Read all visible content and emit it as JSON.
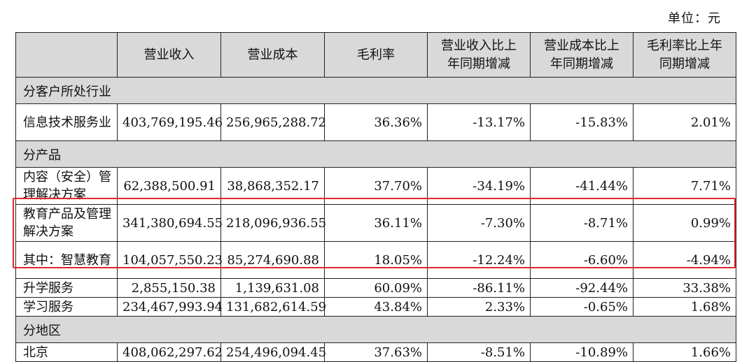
{
  "unit_label": "单位：元",
  "headers": [
    "",
    "营业收入",
    "营业成本",
    "毛利率",
    "营业收入比上年同期增减",
    "营业成本比上年同期增减",
    "毛利率比上年同期增减"
  ],
  "sections": [
    {
      "title": "分客户所处行业",
      "rows": [
        {
          "name": "信息技术服务业",
          "values": [
            "403,769,195.46",
            "256,965,288.72",
            "36.36%",
            "-13.17%",
            "-15.83%",
            "2.01%"
          ]
        }
      ]
    },
    {
      "title": "分产品",
      "rows": [
        {
          "name": "内容（安全）管理解决方案",
          "values": [
            "62,388,500.91",
            "38,868,352.17",
            "37.70%",
            "-34.19%",
            "-41.44%",
            "7.71%"
          ]
        },
        {
          "name": "教育产品及管理解决方案",
          "values": [
            "341,380,694.55",
            "218,096,936.55",
            "36.11%",
            "-7.30%",
            "-8.71%",
            "0.99%"
          ]
        },
        {
          "name": "其中：智慧教育",
          "values": [
            "104,057,550.23",
            "85,274,690.88",
            "18.05%",
            "-12.24%",
            "-6.60%",
            "-4.94%"
          ]
        },
        {
          "name": "升学服务",
          "values": [
            "2,855,150.38",
            "1,139,631.08",
            "60.09%",
            "-86.11%",
            "-92.44%",
            "33.38%"
          ]
        },
        {
          "name": "学习服务",
          "values": [
            "234,467,993.94",
            "131,682,614.59",
            "43.84%",
            "2.33%",
            "-0.65%",
            "1.68%"
          ]
        }
      ]
    },
    {
      "title": "分地区",
      "rows": [
        {
          "name": "北京",
          "values": [
            "408,062,297.62",
            "254,496,094.45",
            "37.63%",
            "-8.51%",
            "-10.89%",
            "1.66%"
          ]
        }
      ]
    }
  ],
  "colors": {
    "header_bg": "#d9d9d9",
    "highlight": "#e0262a"
  }
}
